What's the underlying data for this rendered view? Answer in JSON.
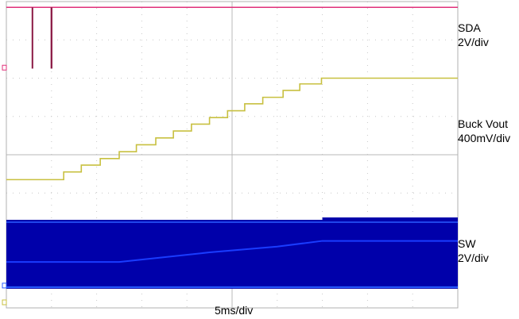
{
  "chart_data": {
    "type": "line",
    "title": "",
    "xlabel": "5ms/div",
    "grid": true,
    "x_divisions": 10,
    "y_divisions": 8,
    "channels": [
      {
        "name": "SDA",
        "scale": "2V/div",
        "color": "#e0307a",
        "pulse_color": "#8b1a45",
        "description_level_div": 7.85,
        "pulses_ms": [
          [
            5.6,
            5.9
          ],
          [
            9.8,
            10.2
          ]
        ],
        "pulse_low_div": 6.25
      },
      {
        "name": "Buck Vout",
        "scale": "400mV/div",
        "color": "#c8c040",
        "start_div": 3.35,
        "end_div": 6.0,
        "steps_time_ms": [
          12.7,
          16.6,
          20.8,
          25.0,
          28.8,
          33.1,
          37.0,
          41.0,
          45.0,
          49.0,
          52.8,
          56.8,
          61.3,
          65.0,
          69.8
        ],
        "steps_level_div": [
          3.35,
          3.55,
          3.73,
          3.9,
          4.08,
          4.26,
          4.44,
          4.62,
          4.8,
          4.97,
          5.15,
          5.33,
          5.5,
          5.68,
          5.85,
          6.0
        ]
      },
      {
        "name": "SW",
        "scale": "2V/div",
        "color": "#0000aa",
        "avg_color": "#1a3cff",
        "edge_color": "#2a5cff",
        "band_top_div": 2.3,
        "band_bottom_div": 0.5,
        "avg_points_ms_div": [
          [
            0,
            1.2
          ],
          [
            25,
            1.2
          ],
          [
            45,
            1.45
          ],
          [
            60,
            1.6
          ],
          [
            70,
            1.75
          ],
          [
            100,
            1.75
          ]
        ]
      }
    ]
  },
  "labels": {
    "sda_name": "SDA",
    "sda_scale": "2V/div",
    "vout_name": "Buck Vout",
    "vout_scale": "400mV/div",
    "sw_name": "SW",
    "sw_scale": "2V/div",
    "timebase": "5ms/div"
  }
}
